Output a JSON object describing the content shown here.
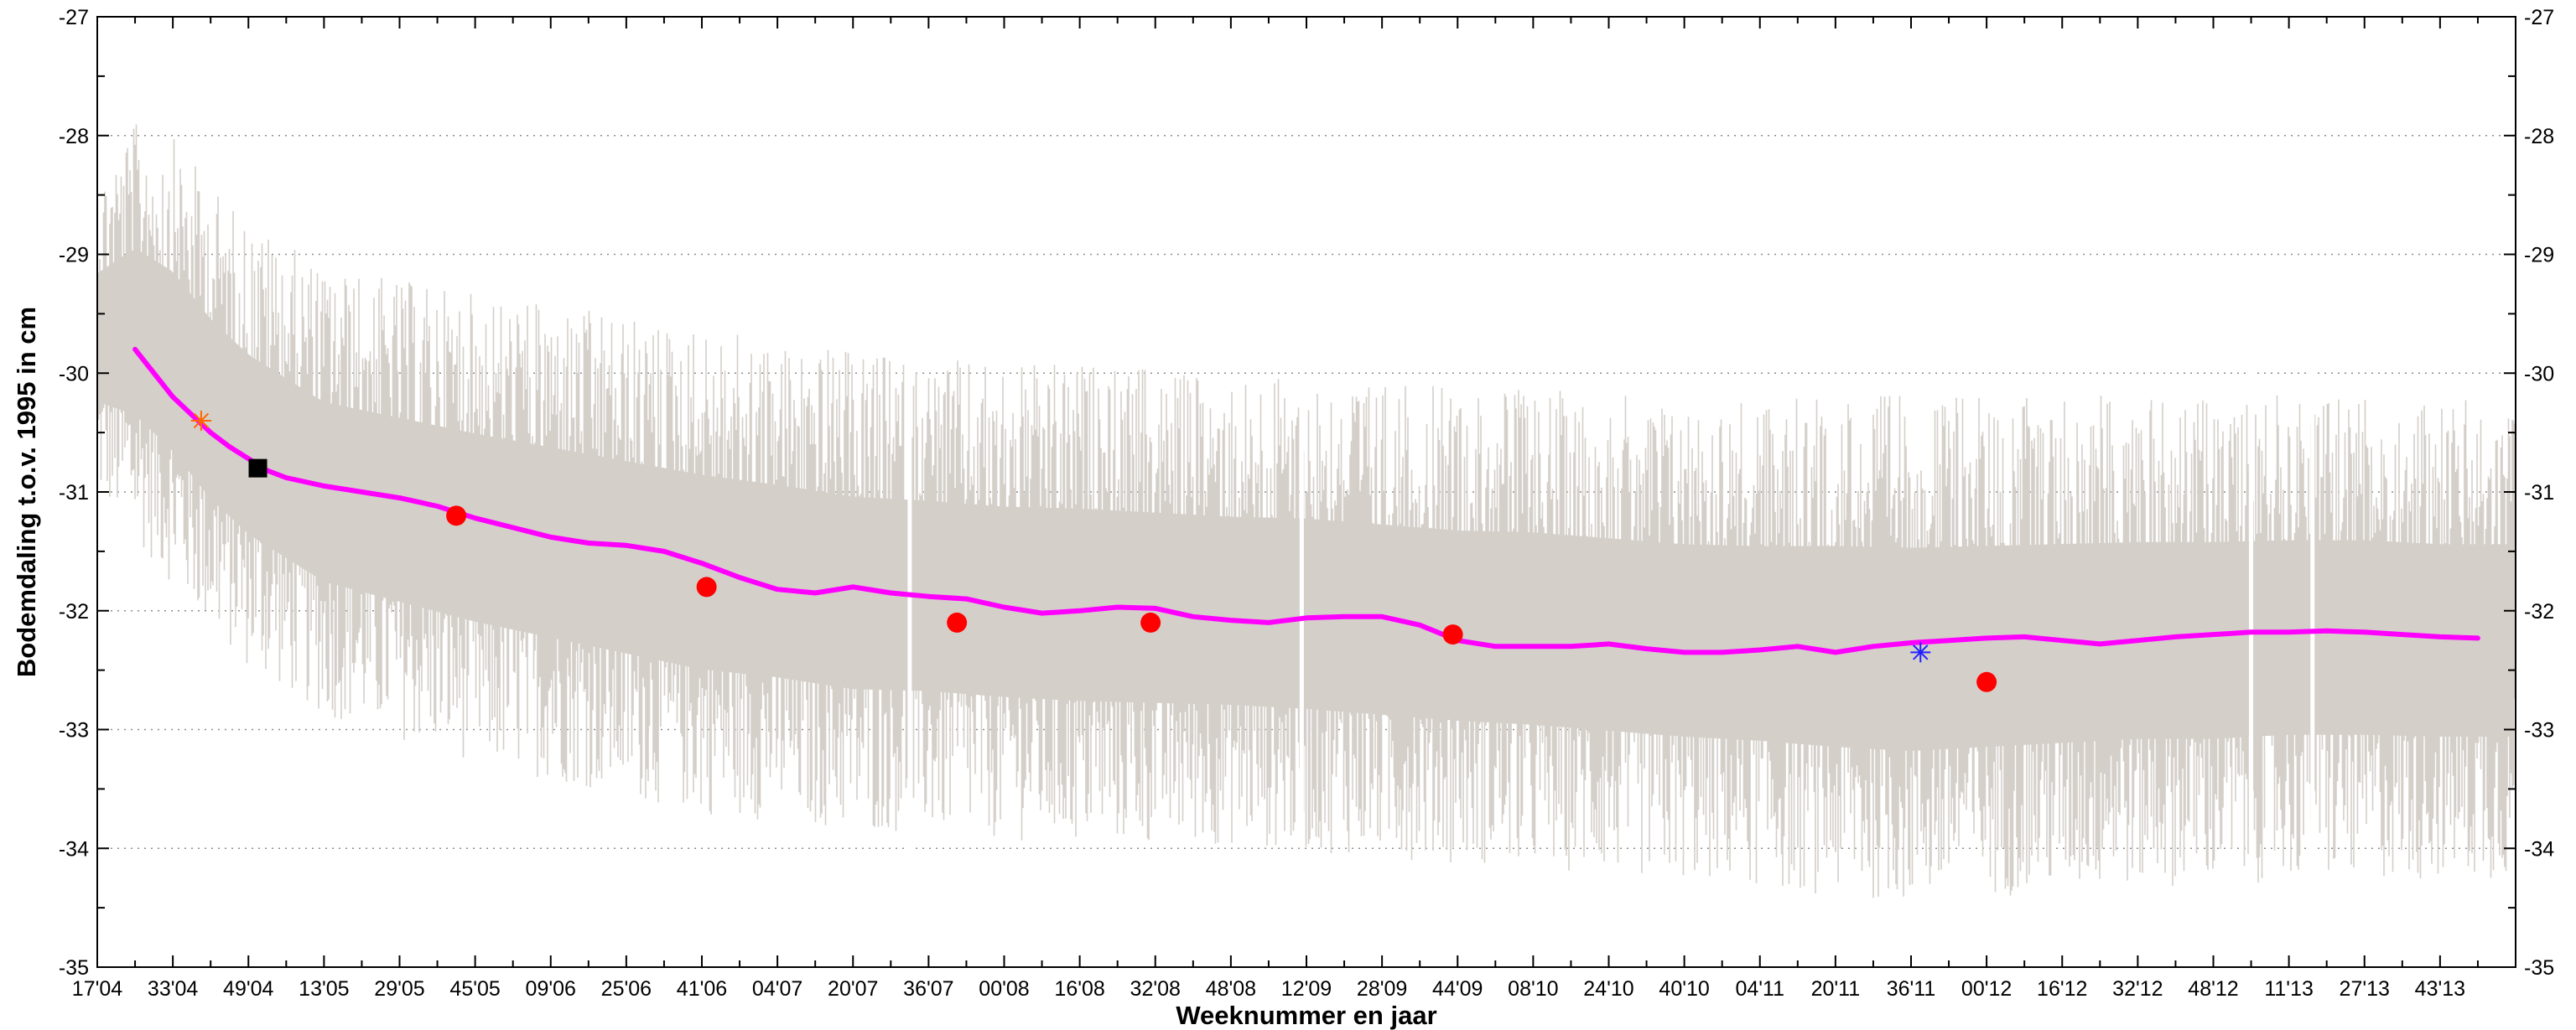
{
  "chart_data": {
    "type": "line",
    "title": "",
    "xlabel": "Weeknummer en jaar",
    "ylabel": "Bodemdaling t.o.v. 1995 in cm",
    "ylim": [
      -35,
      -27
    ],
    "y_ticks": [
      -35,
      -34,
      -33,
      -32,
      -31,
      -30,
      -29,
      -28,
      -27
    ],
    "x_tick_labels": [
      "17'04",
      "33'04",
      "49'04",
      "13'05",
      "29'05",
      "45'05",
      "09'06",
      "25'06",
      "41'06",
      "04'07",
      "20'07",
      "36'07",
      "00'08",
      "16'08",
      "32'08",
      "48'08",
      "12'09",
      "28'09",
      "44'09",
      "08'10",
      "24'10",
      "40'10",
      "04'11",
      "20'11",
      "36'11",
      "00'12",
      "16'12",
      "32'12",
      "48'12",
      "11'13",
      "27'13",
      "43'13"
    ],
    "x_unit": "week index from 17'04 (16 weeks per tick)",
    "xlim": [
      0,
      512
    ],
    "grid": "horizontal dotted",
    "colors": {
      "raw": "#d4cfc9",
      "smoothed": "#ff00ff",
      "survey": "#ff0000",
      "marker_square": "#000000",
      "marker_star_orange": "#ff6600",
      "marker_star_blue": "#2222ff"
    },
    "series": [
      {
        "type": "line",
        "role": "smoothed",
        "x": [
          8,
          12,
          16,
          20,
          24,
          28,
          32,
          36,
          40,
          48,
          56,
          64,
          72,
          80,
          88,
          96,
          104,
          112,
          120,
          128,
          136,
          144,
          152,
          160,
          168,
          176,
          184,
          192,
          200,
          208,
          216,
          224,
          232,
          240,
          248,
          256,
          264,
          272,
          280,
          288,
          296,
          304,
          312,
          320,
          328,
          336,
          344,
          352,
          360,
          368,
          376,
          384,
          392,
          400,
          408,
          416,
          424,
          432,
          440,
          448,
          456,
          464,
          472,
          480,
          488,
          496,
          504
        ],
        "y": [
          -29.8,
          -30.0,
          -30.2,
          -30.35,
          -30.5,
          -30.62,
          -30.72,
          -30.82,
          -30.88,
          -30.95,
          -31.0,
          -31.05,
          -31.12,
          -31.22,
          -31.3,
          -31.38,
          -31.43,
          -31.45,
          -31.5,
          -31.6,
          -31.72,
          -31.82,
          -31.85,
          -31.8,
          -31.85,
          -31.88,
          -31.9,
          -31.97,
          -32.02,
          -32.0,
          -31.97,
          -31.98,
          -32.05,
          -32.08,
          -32.1,
          -32.06,
          -32.05,
          -32.05,
          -32.12,
          -32.25,
          -32.3,
          -32.3,
          -32.3,
          -32.28,
          -32.32,
          -32.35,
          -32.35,
          -32.33,
          -32.3,
          -32.35,
          -32.3,
          -32.27,
          -32.25,
          -32.23,
          -32.22,
          -32.25,
          -32.28,
          -32.25,
          -32.22,
          -32.2,
          -32.18,
          -32.18,
          -32.17,
          -32.18,
          -32.2,
          -32.22,
          -32.23
        ]
      },
      {
        "type": "scatter",
        "role": "survey",
        "marker": "circle",
        "x": [
          76,
          129,
          182,
          223,
          287,
          400
        ],
        "y": [
          -31.2,
          -31.8,
          -32.1,
          -32.1,
          -32.2,
          -32.6
        ]
      },
      {
        "type": "scatter",
        "role": "marker_square",
        "marker": "square",
        "x": [
          34
        ],
        "y": [
          -30.8
        ]
      },
      {
        "type": "scatter",
        "role": "marker_star_orange",
        "marker": "star",
        "x": [
          22
        ],
        "y": [
          -30.4
        ]
      },
      {
        "type": "scatter",
        "role": "marker_star_blue",
        "marker": "star",
        "x": [
          386
        ],
        "y": [
          -32.35
        ]
      }
    ],
    "raw_envelope": {
      "x": [
        0,
        8,
        16,
        24,
        32,
        40,
        48,
        64,
        80,
        96,
        112,
        128,
        144,
        160,
        176,
        192,
        208,
        224,
        240,
        256,
        272,
        288,
        304,
        320,
        336,
        352,
        368,
        384,
        400,
        416,
        432,
        448,
        464,
        480,
        496,
        512
      ],
      "upper": [
        -28.2,
        -27.7,
        -27.8,
        -28.2,
        -28.5,
        -28.7,
        -28.9,
        -29.0,
        -29.1,
        -29.2,
        -29.3,
        -29.4,
        -29.5,
        -29.6,
        -29.65,
        -29.7,
        -29.7,
        -29.75,
        -29.8,
        -29.8,
        -29.85,
        -29.9,
        -29.9,
        -29.95,
        -30.0,
        -30.0,
        -29.95,
        -29.95,
        -29.95,
        -29.95,
        -29.95,
        -29.95,
        -29.95,
        -29.95,
        -30.0,
        -30.0
      ],
      "lower": [
        -31.2,
        -31.6,
        -32.0,
        -32.4,
        -32.7,
        -32.9,
        -33.1,
        -33.3,
        -33.5,
        -33.65,
        -33.8,
        -33.95,
        -34.0,
        -34.1,
        -34.1,
        -34.15,
        -34.2,
        -34.2,
        -34.2,
        -34.25,
        -34.3,
        -34.35,
        -34.4,
        -34.45,
        -34.5,
        -34.55,
        -34.65,
        -34.7,
        -34.65,
        -34.6,
        -34.55,
        -34.55,
        -34.5,
        -34.5,
        -34.5,
        -34.5
      ],
      "gaps_x": [
        172,
        255,
        456,
        469
      ]
    }
  }
}
